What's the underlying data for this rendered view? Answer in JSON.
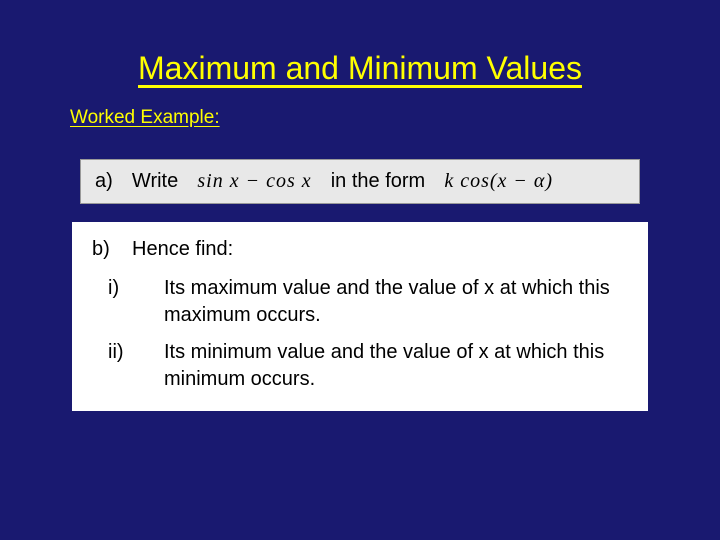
{
  "colors": {
    "background": "#191970",
    "title_color": "#ffff00",
    "subtitle_color": "#ffff00",
    "box_a_bg": "#e8e8e8",
    "box_b_bg": "#ffffff",
    "text_color": "#000000"
  },
  "typography": {
    "title_fontsize": 32,
    "subtitle_fontsize": 19,
    "body_fontsize": 20,
    "title_font": "Comic Sans MS",
    "math_font": "Times New Roman"
  },
  "title": "Maximum and Minimum Values",
  "subtitle": "Worked Example:",
  "partA": {
    "label": "a)",
    "pre": "Write",
    "expr1": "sin x − cos x",
    "mid": "in the form",
    "expr2": "k cos(x − α)"
  },
  "partB": {
    "heading_label": "b)",
    "heading_text": "Hence find:",
    "items": [
      {
        "label": "i)",
        "text": "Its maximum value and  the value of x at which this maximum occurs."
      },
      {
        "label": "ii)",
        "text": "Its minimum value and  the value of x at which this minimum occurs."
      }
    ]
  }
}
